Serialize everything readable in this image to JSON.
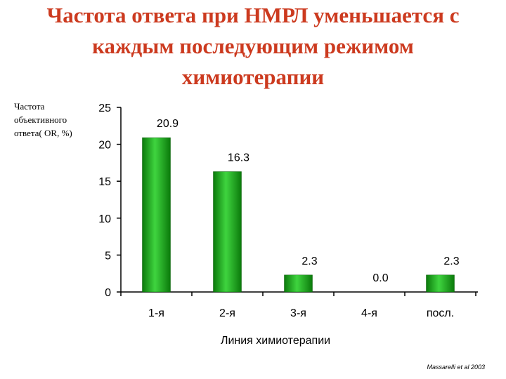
{
  "title_lines": [
    "Частота ответа при НМРЛ уменьшается с",
    "каждым последующим режимом",
    "химиотерапии"
  ],
  "ylabel_lines": [
    "Частота",
    "объективного",
    "ответа( OR, %)"
  ],
  "source": "Massarelli et al 2003",
  "colors": {
    "title": "#cc3a1f",
    "bar": "#22b422",
    "axis": "#000000"
  },
  "chart_data": {
    "type": "bar",
    "title": "Частота ответа при НМРЛ уменьшается с каждым последующим режимом химиотерапии",
    "xlabel": "Линия химиотерапии",
    "ylabel": "Частота объективного ответа( OR, %)",
    "categories": [
      "1-я",
      "2-я",
      "3-я",
      "4-я",
      "посл."
    ],
    "values": [
      20.9,
      16.3,
      2.3,
      0.0,
      2.3
    ],
    "value_labels": [
      "20.9",
      "16.3",
      "2.3",
      "0.0",
      "2.3"
    ],
    "ylim": [
      0,
      25
    ],
    "yticks": [
      0,
      5,
      10,
      15,
      20,
      25
    ],
    "grid": false,
    "legend": "none"
  }
}
